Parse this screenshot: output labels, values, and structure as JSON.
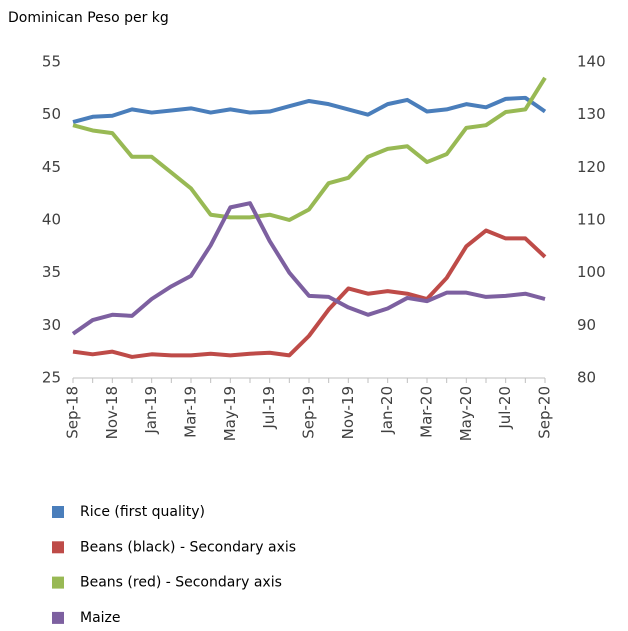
{
  "chart_data": {
    "type": "line",
    "title": "Dominican Peso per kg",
    "categories": [
      "Sep-18",
      null,
      "Nov-18",
      null,
      "Jan-19",
      null,
      "Mar-19",
      null,
      "May-19",
      null,
      "Jul-19",
      null,
      "Sep-19",
      null,
      "Nov-19",
      null,
      "Jan-20",
      null,
      "Mar-20",
      null,
      "May-20",
      null,
      "Jul-20",
      null,
      "Sep-20"
    ],
    "ylim": [
      25,
      55
    ],
    "yticks": [
      25,
      30,
      35,
      40,
      45,
      50,
      55
    ],
    "y2lim": [
      80,
      140
    ],
    "y2ticks": [
      80,
      90,
      100,
      110,
      120,
      130,
      140
    ],
    "legend": "bottom",
    "series": [
      {
        "name": "Rice (first quality)",
        "color": "#4a7ebb",
        "values": [
          49.3,
          49.8,
          49.9,
          50.5,
          50.2,
          50.4,
          50.6,
          50.2,
          50.5,
          50.2,
          50.3,
          50.8,
          51.3,
          51.0,
          50.5,
          50.0,
          51.0,
          51.4,
          50.3,
          50.5,
          51.0,
          50.7,
          51.5,
          51.6,
          50.3
        ]
      },
      {
        "name": "Beans (black) - Secondary axis",
        "color": "#be4b48",
        "axis": "y2",
        "values": [
          85,
          84.5,
          85,
          84,
          84.5,
          84.3,
          84.3,
          84.6,
          84.3,
          84.6,
          84.8,
          84.3,
          88,
          93,
          97,
          96,
          96.5,
          96,
          95,
          99,
          105,
          108,
          106.5,
          106.5,
          103
        ]
      },
      {
        "name": "Beans (red) - Secondary axis",
        "color": "#98b954",
        "axis": "y2",
        "values": [
          128,
          127,
          126.5,
          122,
          122,
          119,
          116,
          111,
          110.5,
          110.5,
          111,
          110,
          112,
          117,
          118,
          122,
          123.5,
          124,
          121,
          122.5,
          127.5,
          128,
          130.5,
          131,
          137
        ]
      },
      {
        "name": "Maize",
        "color": "#7d60a0",
        "values": [
          29.2,
          30.5,
          31.0,
          30.9,
          32.5,
          33.7,
          34.7,
          37.6,
          41.2,
          41.6,
          38.0,
          35.0,
          32.8,
          32.7,
          31.7,
          31.0,
          31.6,
          32.6,
          32.3,
          33.1,
          33.1,
          32.7,
          32.8,
          33.0,
          32.5
        ]
      }
    ]
  }
}
